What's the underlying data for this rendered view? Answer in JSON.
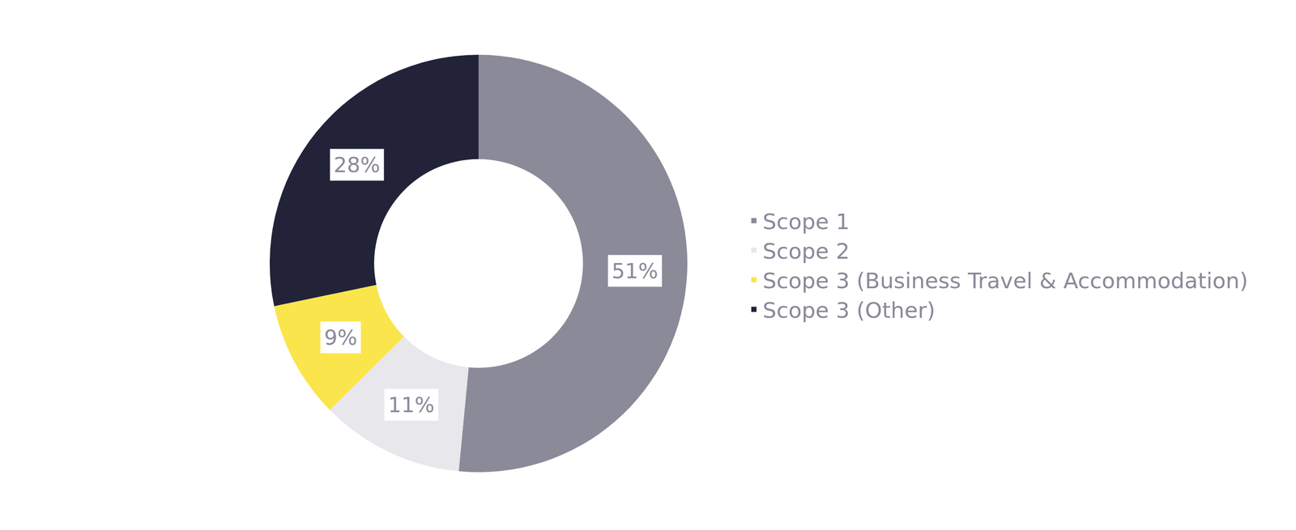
{
  "chart_data": {
    "type": "pie",
    "categories": [
      "Scope 1",
      "Scope 2",
      "Scope 3 (Business Travel & Accommodation)",
      "Scope 3 (Other)"
    ],
    "values": [
      51,
      11,
      9,
      28
    ],
    "value_labels": [
      "51%",
      "11%",
      "9%",
      "28%"
    ],
    "colors": [
      "#8b8a99",
      "#e8e8ec",
      "#fbe54d",
      "#222338"
    ],
    "data_labels": true,
    "legend": "right"
  }
}
